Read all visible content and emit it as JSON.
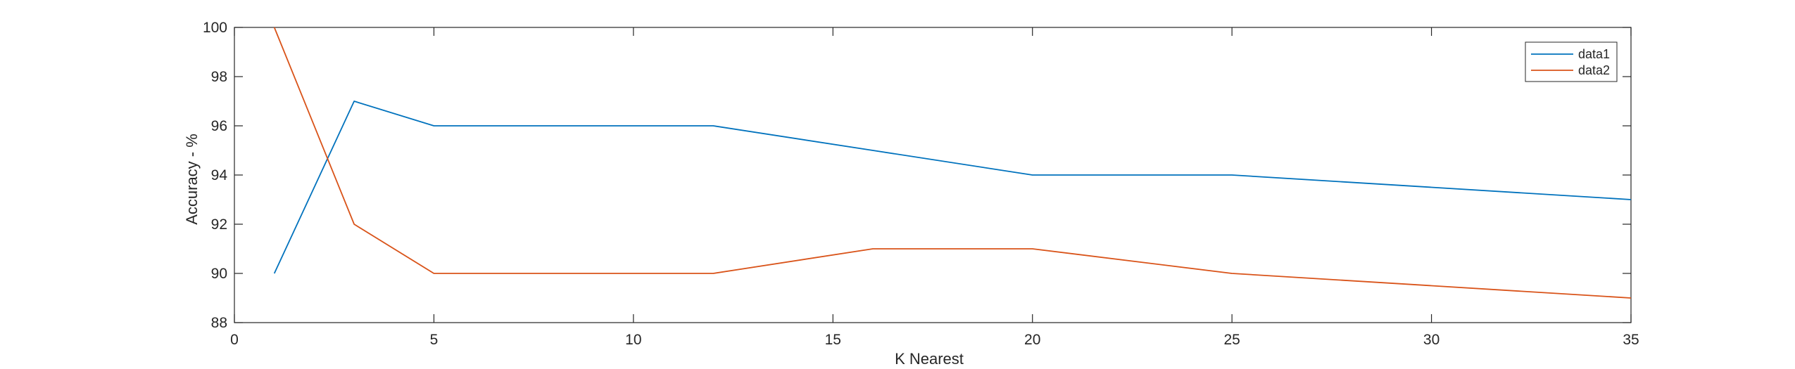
{
  "chart_data": {
    "type": "line",
    "title": "",
    "xlabel": "K Nearest",
    "ylabel": "Accuracy - %",
    "xlim": [
      0,
      35
    ],
    "ylim": [
      88,
      100
    ],
    "xticks": [
      0,
      5,
      10,
      15,
      20,
      25,
      30,
      35
    ],
    "yticks": [
      88,
      90,
      92,
      94,
      96,
      98,
      100
    ],
    "grid": false,
    "legend_position": "top-right",
    "series": [
      {
        "name": "data1",
        "color": "#0072BD",
        "points": [
          [
            1,
            90
          ],
          [
            3,
            97
          ],
          [
            5,
            96
          ],
          [
            12,
            96
          ],
          [
            16,
            95
          ],
          [
            20,
            94
          ],
          [
            25,
            94
          ],
          [
            30,
            93.5
          ],
          [
            35,
            93
          ]
        ]
      },
      {
        "name": "data2",
        "color": "#D95319",
        "points": [
          [
            1,
            100
          ],
          [
            3,
            92
          ],
          [
            5,
            90
          ],
          [
            12,
            90
          ],
          [
            16,
            91
          ],
          [
            20,
            91
          ],
          [
            25,
            90
          ],
          [
            30,
            89.5
          ],
          [
            35,
            89
          ]
        ]
      }
    ]
  }
}
